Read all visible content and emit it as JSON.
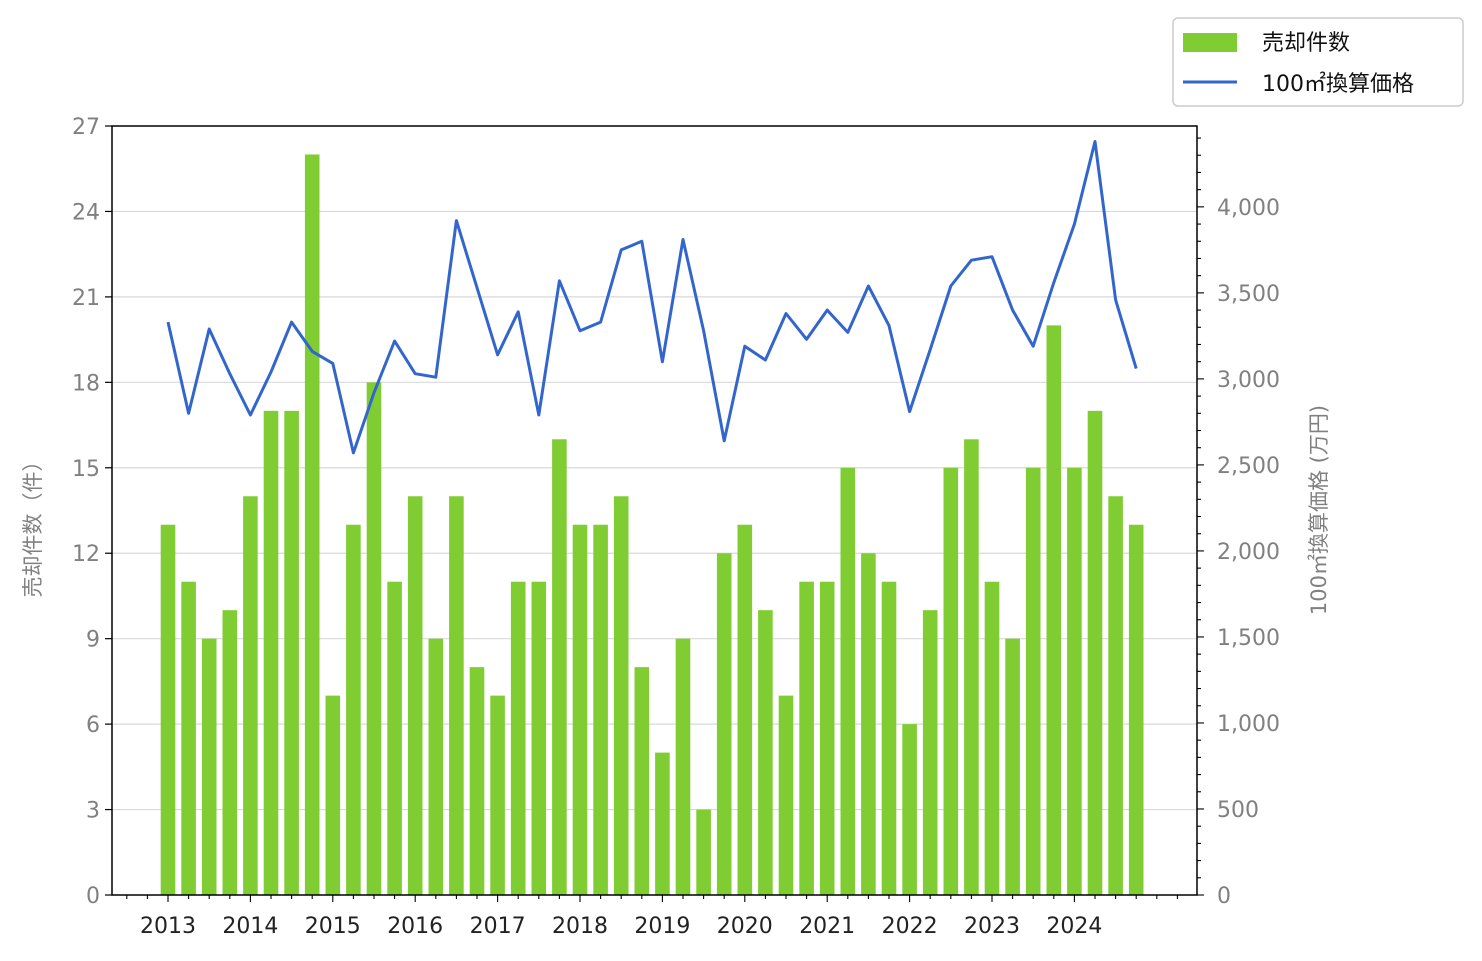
{
  "chart_data": {
    "type": "bar+line",
    "x": [
      "2013Q1",
      "2013Q2",
      "2013Q3",
      "2013Q4",
      "2014Q1",
      "2014Q2",
      "2014Q3",
      "2014Q4",
      "2015Q1",
      "2015Q2",
      "2015Q3",
      "2015Q4",
      "2016Q1",
      "2016Q2",
      "2016Q3",
      "2016Q4",
      "2017Q1",
      "2017Q2",
      "2017Q3",
      "2017Q4",
      "2018Q1",
      "2018Q2",
      "2018Q3",
      "2018Q4",
      "2019Q1",
      "2019Q2",
      "2019Q3",
      "2019Q4",
      "2020Q1",
      "2020Q2",
      "2020Q3",
      "2020Q4",
      "2021Q1",
      "2021Q2",
      "2021Q3",
      "2021Q4",
      "2022Q1",
      "2022Q2",
      "2022Q3",
      "2022Q4",
      "2023Q1",
      "2023Q2",
      "2023Q3",
      "2023Q4",
      "2024Q1",
      "2024Q2",
      "2024Q3",
      "2024Q4"
    ],
    "x_tick_labels": [
      "2013",
      "2014",
      "2015",
      "2016",
      "2017",
      "2018",
      "2019",
      "2020",
      "2021",
      "2022",
      "2023",
      "2024"
    ],
    "series": [
      {
        "name": "売却件数",
        "type": "bar",
        "axis": "left",
        "color": "#80cc33",
        "values": [
          13,
          11,
          9,
          10,
          14,
          17,
          17,
          26,
          7,
          13,
          18,
          11,
          14,
          9,
          14,
          8,
          7,
          11,
          11,
          16,
          13,
          13,
          14,
          8,
          5,
          9,
          3,
          12,
          13,
          10,
          7,
          11,
          11,
          15,
          12,
          11,
          6,
          10,
          15,
          16,
          11,
          9,
          15,
          20,
          15,
          17,
          14,
          13
        ]
      },
      {
        "name": "100㎡換算価格",
        "type": "line",
        "axis": "right",
        "color": "#3366cc",
        "values": [
          3330,
          2800,
          3290,
          3030,
          2790,
          3040,
          3330,
          3160,
          3090,
          2570,
          2920,
          3220,
          3030,
          3010,
          3920,
          3530,
          3140,
          3390,
          2790,
          3570,
          3280,
          3330,
          3750,
          3800,
          3100,
          3810,
          3280,
          2640,
          3190,
          3110,
          3380,
          3230,
          3400,
          3270,
          3540,
          3310,
          2810,
          3170,
          3540,
          3690,
          3710,
          3400,
          3190,
          3560,
          3900,
          4380,
          3460,
          3060
        ]
      }
    ],
    "y_left": {
      "label": "売却件数（件）",
      "ylim": [
        0,
        27
      ],
      "ticks": [
        "0",
        "3",
        "6",
        "9",
        "12",
        "15",
        "18",
        "21",
        "24",
        "27"
      ]
    },
    "y_right": {
      "label": "100㎡換算価格 (万円)",
      "ylim": [
        0,
        4470
      ],
      "ticks": [
        "0",
        "500",
        "1,000",
        "1,500",
        "2,000",
        "2,500",
        "3,000",
        "3,500",
        "4,000"
      ]
    },
    "grid": "horizontal",
    "legend": "top-right"
  }
}
